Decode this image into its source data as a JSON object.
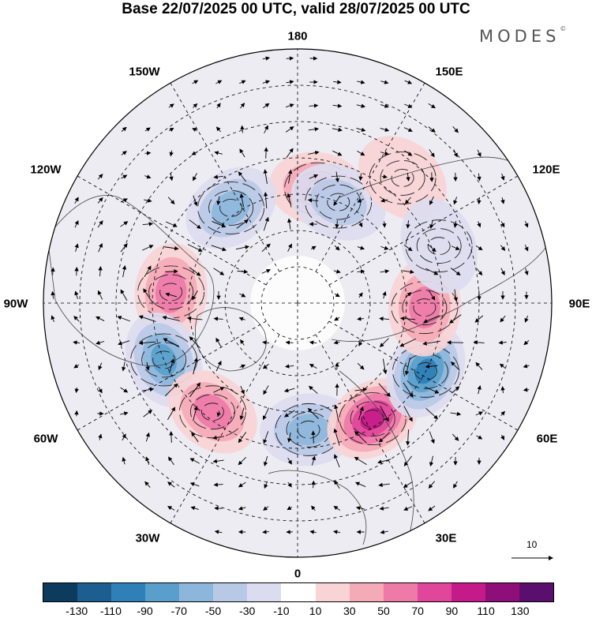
{
  "title": "Base 22/07/2025 00 UTC, valid 28/07/2025 00 UTC",
  "logo_text": "MODES",
  "logo_mark": "©",
  "longitude_labels": {
    "top": "180",
    "bottom": "0",
    "left": "90W",
    "right": "90E",
    "top_left_1": "150W",
    "top_left_2": "120W",
    "top_right_1": "150E",
    "top_right_2": "120E",
    "bottom_left_1": "60W",
    "bottom_left_2": "30W",
    "bottom_right_1": "60E",
    "bottom_right_2": "30E"
  },
  "reference_vector": {
    "label": "10"
  },
  "colorbar": {
    "ticks": [
      "-130",
      "-110",
      "-90",
      "-70",
      "-50",
      "-30",
      "-10",
      "10",
      "30",
      "50",
      "70",
      "90",
      "110",
      "130"
    ],
    "colors": [
      "#0d3b5e",
      "#1b5e8f",
      "#2f7fb8",
      "#5a9fcc",
      "#8db6dc",
      "#b8c9e6",
      "#dcdcf0",
      "#ffffff",
      "#f9d4d6",
      "#f5aab8",
      "#ee7aa8",
      "#e0479a",
      "#c51b8a",
      "#8e0e7a",
      "#5a0f6e"
    ]
  },
  "anomaly_centers": [
    {
      "name": "pacific-high-160W",
      "lon": 170,
      "lat": 58,
      "value": 75
    },
    {
      "name": "low-135W",
      "lon": -145,
      "lat": 58,
      "value": -65
    },
    {
      "name": "low-160E",
      "lon": 158,
      "lat": 60,
      "value": -45
    },
    {
      "name": "high-150E",
      "lon": 140,
      "lat": 45,
      "value": 25
    },
    {
      "name": "high-100W",
      "lon": -95,
      "lat": 55,
      "value": 75
    },
    {
      "name": "low-70W",
      "lon": -67,
      "lat": 50,
      "value": -85
    },
    {
      "name": "high-35W",
      "lon": -38,
      "lat": 52,
      "value": 60
    },
    {
      "name": "low-0",
      "lon": 5,
      "lat": 55,
      "value": -60
    },
    {
      "name": "high-35E",
      "lon": 33,
      "lat": 52,
      "value": 100
    },
    {
      "name": "low-65E",
      "lon": 62,
      "lat": 50,
      "value": -100
    },
    {
      "name": "high-90E",
      "lon": 88,
      "lat": 55,
      "value": 70
    },
    {
      "name": "low-100E",
      "lon": 112,
      "lat": 48,
      "value": -25
    }
  ]
}
